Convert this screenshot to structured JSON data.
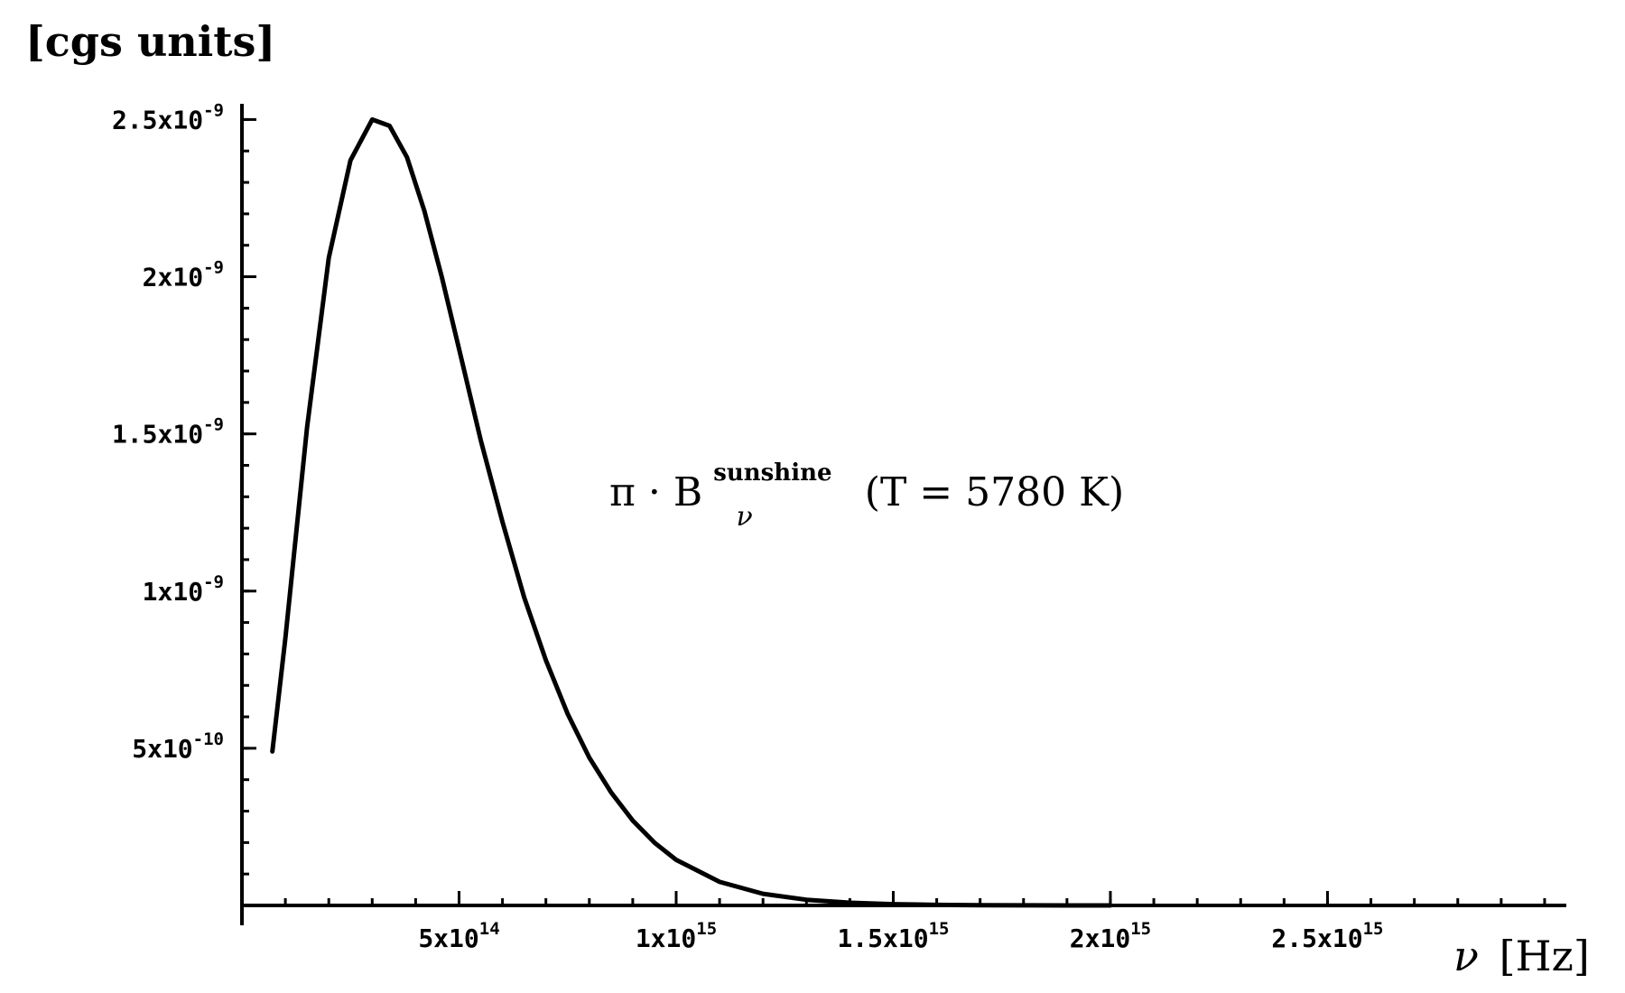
{
  "chart_data": {
    "type": "line",
    "ylabel": "[cgs units]",
    "xlabel_symbol": "ν",
    "xlabel_unit": "[Hz]",
    "annotation": {
      "prefix": "π · B",
      "subscript": "ν",
      "superscript": "sunshine",
      "suffix": "(T = 5780 K)"
    },
    "xlim": [
      0,
      3050000000000000.0
    ],
    "ylim": [
      0,
      2.55e-09
    ],
    "x_ticks": [
      {
        "value": 500000000000000.0,
        "mantissa": "5x10",
        "exp": "14"
      },
      {
        "value": 1000000000000000.0,
        "mantissa": "1x10",
        "exp": "15"
      },
      {
        "value": 1500000000000000.0,
        "mantissa": "1.5x10",
        "exp": "15"
      },
      {
        "value": 2000000000000000.0,
        "mantissa": "2x10",
        "exp": "15"
      },
      {
        "value": 2500000000000000.0,
        "mantissa": "2.5x10",
        "exp": "15"
      }
    ],
    "y_ticks": [
      {
        "value": 5e-10,
        "mantissa": "5x10",
        "exp": "-10"
      },
      {
        "value": 1e-09,
        "mantissa": "1x10",
        "exp": "-9"
      },
      {
        "value": 1.5e-09,
        "mantissa": "1.5x10",
        "exp": "-9"
      },
      {
        "value": 2e-09,
        "mantissa": "2x10",
        "exp": "-9"
      },
      {
        "value": 2.5e-09,
        "mantissa": "2.5x10",
        "exp": "-9"
      }
    ],
    "x_minor_step": 100000000000000.0,
    "y_minor_step": 1e-10,
    "series": [
      {
        "color": "#000000",
        "x": [
          70000000000000.0,
          100000000000000.0,
          150000000000000.0,
          200000000000000.0,
          250000000000000.0,
          300000000000000.0,
          340000000000000.0,
          380000000000000.0,
          420000000000000.0,
          460000000000000.0,
          500000000000000.0,
          550000000000000.0,
          600000000000000.0,
          650000000000000.0,
          700000000000000.0,
          750000000000000.0,
          800000000000000.0,
          850000000000000.0,
          900000000000000.0,
          950000000000000.0,
          1000000000000000.0,
          1100000000000000.0,
          1200000000000000.0,
          1300000000000000.0,
          1400000000000000.0,
          1500000000000000.0,
          1600000000000000.0,
          1700000000000000.0,
          1800000000000000.0,
          1900000000000000.0,
          2000000000000000.0
        ],
        "y": [
          4.9e-10,
          8.5e-10,
          1.52e-09,
          2.06e-09,
          2.37e-09,
          2.5e-09,
          2.48e-09,
          2.38e-09,
          2.21e-09,
          2e-09,
          1.77e-09,
          1.48e-09,
          1.22e-09,
          9.8e-10,
          7.8e-10,
          6.1e-10,
          4.7e-10,
          3.6e-10,
          2.7e-10,
          2e-10,
          1.45e-10,
          7.5e-11,
          3.7e-11,
          1.8e-11,
          8.5e-12,
          3.9e-12,
          1.7e-12,
          7.5e-13,
          3.2e-13,
          1.4e-13,
          5.7e-14
        ]
      }
    ]
  }
}
